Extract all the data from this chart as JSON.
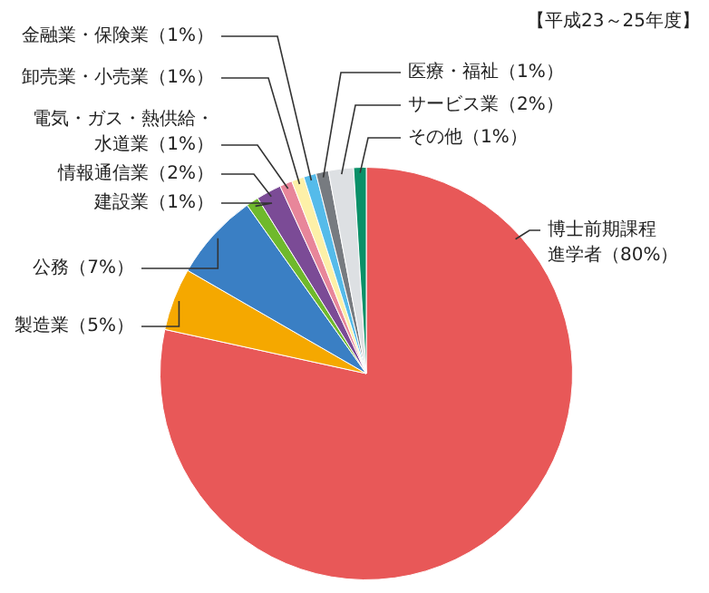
{
  "chart_data": {
    "type": "pie",
    "title": "【平成23～25年度】",
    "categories": [
      "博士前期課程進学者",
      "製造業",
      "公務",
      "建設業",
      "情報通信業",
      "電気・ガス・熱供給・水道業",
      "卸売業・小売業",
      "金融業・保険業",
      "医療・福祉",
      "サービス業",
      "その他"
    ],
    "values": [
      80,
      5,
      7,
      1,
      2,
      1,
      1,
      1,
      1,
      2,
      1
    ],
    "value_labels": [
      "（80%）",
      "（5%）",
      "（7%）",
      "（1%）",
      "（2%）",
      "（1%）",
      "（1%）",
      "（1%）",
      "（1%）",
      "（2%）",
      "（1%）"
    ],
    "colors": [
      "#e85858",
      "#f5a800",
      "#3a7fc4",
      "#6fb92c",
      "#7b4b96",
      "#e8869a",
      "#fdf0a8",
      "#55bbea",
      "#777b80",
      "#dde0e3",
      "#0a9068"
    ]
  }
}
